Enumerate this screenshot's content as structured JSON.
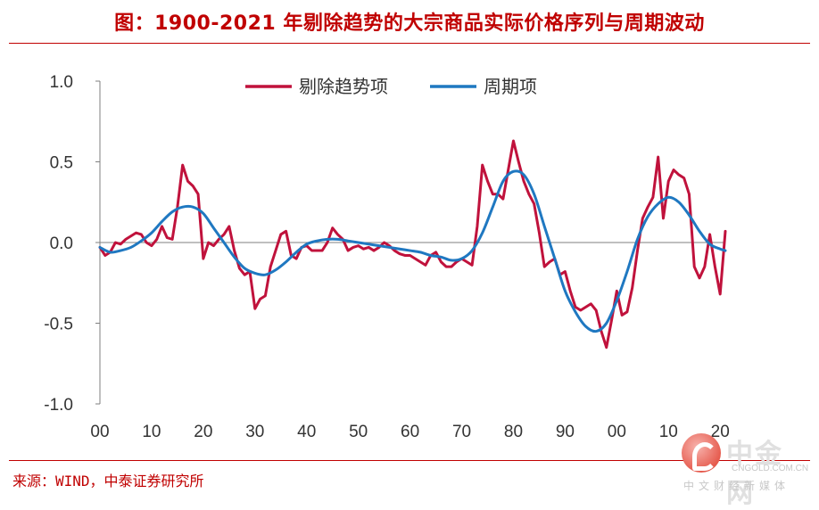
{
  "title": "图：1900-2021 年剔除趋势的大宗商品实际价格序列与周期波动",
  "source": "来源：WIND，中泰证券研究所",
  "watermark": {
    "name": "中金网",
    "url": "CNGOLD.COM.CN",
    "tagline": "中文财经新媒体"
  },
  "colors": {
    "accent": "#c00000",
    "detrended": "#c0123c",
    "cycle": "#1f78c1",
    "axis": "#7f7f7f"
  },
  "chart_data": {
    "type": "line",
    "title": "图：1900-2021 年剔除趋势的大宗商品实际价格序列与周期波动",
    "xlabel": "",
    "ylabel": "",
    "xlim": [
      1900,
      2021
    ],
    "ylim": [
      -1.0,
      1.0
    ],
    "x_ticks": [
      1900,
      1910,
      1920,
      1930,
      1940,
      1950,
      1960,
      1970,
      1980,
      1990,
      2000,
      2010,
      2020
    ],
    "x_tick_labels": [
      "00",
      "10",
      "20",
      "30",
      "40",
      "50",
      "60",
      "70",
      "80",
      "90",
      "00",
      "10",
      "20"
    ],
    "y_ticks": [
      -1.0,
      -0.5,
      0.0,
      0.5,
      1.0
    ],
    "y_tick_labels": [
      "-1.0",
      "-0.5",
      "0.0",
      "0.5",
      "1.0"
    ],
    "grid": false,
    "legend_position": "top-center",
    "series": [
      {
        "name": "剔除趋势项",
        "points": [
          [
            1900,
            -0.03
          ],
          [
            1901,
            -0.08
          ],
          [
            1902,
            -0.06
          ],
          [
            1903,
            0.0
          ],
          [
            1904,
            -0.01
          ],
          [
            1905,
            0.02
          ],
          [
            1906,
            0.04
          ],
          [
            1907,
            0.06
          ],
          [
            1908,
            0.05
          ],
          [
            1909,
            0.0
          ],
          [
            1910,
            -0.02
          ],
          [
            1911,
            0.02
          ],
          [
            1912,
            0.1
          ],
          [
            1913,
            0.03
          ],
          [
            1914,
            0.02
          ],
          [
            1915,
            0.22
          ],
          [
            1916,
            0.48
          ],
          [
            1917,
            0.38
          ],
          [
            1918,
            0.35
          ],
          [
            1919,
            0.3
          ],
          [
            1920,
            -0.1
          ],
          [
            1921,
            0.0
          ],
          [
            1922,
            -0.02
          ],
          [
            1923,
            0.02
          ],
          [
            1924,
            0.05
          ],
          [
            1925,
            0.1
          ],
          [
            1926,
            -0.05
          ],
          [
            1927,
            -0.16
          ],
          [
            1928,
            -0.2
          ],
          [
            1929,
            -0.18
          ],
          [
            1930,
            -0.41
          ],
          [
            1931,
            -0.35
          ],
          [
            1932,
            -0.33
          ],
          [
            1933,
            -0.15
          ],
          [
            1934,
            -0.05
          ],
          [
            1935,
            0.05
          ],
          [
            1936,
            0.07
          ],
          [
            1937,
            -0.08
          ],
          [
            1938,
            -0.1
          ],
          [
            1939,
            -0.03
          ],
          [
            1940,
            -0.02
          ],
          [
            1941,
            -0.05
          ],
          [
            1942,
            -0.05
          ],
          [
            1943,
            -0.05
          ],
          [
            1944,
            0.0
          ],
          [
            1945,
            0.09
          ],
          [
            1946,
            0.05
          ],
          [
            1947,
            0.02
          ],
          [
            1948,
            -0.05
          ],
          [
            1949,
            -0.03
          ],
          [
            1950,
            -0.02
          ],
          [
            1951,
            -0.04
          ],
          [
            1952,
            -0.03
          ],
          [
            1953,
            -0.05
          ],
          [
            1954,
            -0.03
          ],
          [
            1955,
            0.0
          ],
          [
            1956,
            -0.02
          ],
          [
            1957,
            -0.05
          ],
          [
            1958,
            -0.07
          ],
          [
            1959,
            -0.08
          ],
          [
            1960,
            -0.08
          ],
          [
            1961,
            -0.1
          ],
          [
            1962,
            -0.12
          ],
          [
            1963,
            -0.14
          ],
          [
            1964,
            -0.08
          ],
          [
            1965,
            -0.06
          ],
          [
            1966,
            -0.12
          ],
          [
            1967,
            -0.15
          ],
          [
            1968,
            -0.15
          ],
          [
            1969,
            -0.12
          ],
          [
            1970,
            -0.1
          ],
          [
            1971,
            -0.12
          ],
          [
            1972,
            -0.14
          ],
          [
            1973,
            0.1
          ],
          [
            1974,
            0.48
          ],
          [
            1975,
            0.38
          ],
          [
            1976,
            0.3
          ],
          [
            1977,
            0.3
          ],
          [
            1978,
            0.27
          ],
          [
            1979,
            0.45
          ],
          [
            1980,
            0.63
          ],
          [
            1981,
            0.5
          ],
          [
            1982,
            0.38
          ],
          [
            1983,
            0.3
          ],
          [
            1984,
            0.24
          ],
          [
            1985,
            0.06
          ],
          [
            1986,
            -0.15
          ],
          [
            1987,
            -0.12
          ],
          [
            1988,
            -0.1
          ],
          [
            1989,
            -0.2
          ],
          [
            1990,
            -0.18
          ],
          [
            1991,
            -0.3
          ],
          [
            1992,
            -0.4
          ],
          [
            1993,
            -0.42
          ],
          [
            1994,
            -0.4
          ],
          [
            1995,
            -0.38
          ],
          [
            1996,
            -0.42
          ],
          [
            1997,
            -0.55
          ],
          [
            1998,
            -0.65
          ],
          [
            1999,
            -0.48
          ],
          [
            2000,
            -0.3
          ],
          [
            2001,
            -0.45
          ],
          [
            2002,
            -0.43
          ],
          [
            2003,
            -0.28
          ],
          [
            2004,
            -0.05
          ],
          [
            2005,
            0.15
          ],
          [
            2006,
            0.22
          ],
          [
            2007,
            0.28
          ],
          [
            2008,
            0.53
          ],
          [
            2009,
            0.15
          ],
          [
            2010,
            0.38
          ],
          [
            2011,
            0.45
          ],
          [
            2012,
            0.42
          ],
          [
            2013,
            0.4
          ],
          [
            2014,
            0.3
          ],
          [
            2015,
            -0.15
          ],
          [
            2016,
            -0.22
          ],
          [
            2017,
            -0.15
          ],
          [
            2018,
            0.05
          ],
          [
            2019,
            -0.15
          ],
          [
            2020,
            -0.32
          ],
          [
            2021,
            0.07
          ]
        ]
      },
      {
        "name": "周期项",
        "points": [
          [
            1900,
            -0.03
          ],
          [
            1902,
            -0.06
          ],
          [
            1904,
            -0.05
          ],
          [
            1906,
            -0.03
          ],
          [
            1908,
            0.01
          ],
          [
            1910,
            0.06
          ],
          [
            1912,
            0.13
          ],
          [
            1914,
            0.19
          ],
          [
            1916,
            0.22
          ],
          [
            1918,
            0.22
          ],
          [
            1920,
            0.18
          ],
          [
            1922,
            0.09
          ],
          [
            1924,
            0.0
          ],
          [
            1926,
            -0.09
          ],
          [
            1928,
            -0.16
          ],
          [
            1930,
            -0.19
          ],
          [
            1932,
            -0.2
          ],
          [
            1934,
            -0.17
          ],
          [
            1936,
            -0.12
          ],
          [
            1938,
            -0.06
          ],
          [
            1940,
            -0.01
          ],
          [
            1942,
            0.01
          ],
          [
            1944,
            0.02
          ],
          [
            1946,
            0.02
          ],
          [
            1948,
            0.01
          ],
          [
            1950,
            0.0
          ],
          [
            1952,
            -0.01
          ],
          [
            1954,
            -0.02
          ],
          [
            1956,
            -0.03
          ],
          [
            1958,
            -0.04
          ],
          [
            1960,
            -0.05
          ],
          [
            1962,
            -0.06
          ],
          [
            1964,
            -0.08
          ],
          [
            1966,
            -0.09
          ],
          [
            1968,
            -0.11
          ],
          [
            1970,
            -0.1
          ],
          [
            1972,
            -0.05
          ],
          [
            1974,
            0.06
          ],
          [
            1976,
            0.22
          ],
          [
            1978,
            0.38
          ],
          [
            1980,
            0.44
          ],
          [
            1982,
            0.42
          ],
          [
            1984,
            0.3
          ],
          [
            1986,
            0.1
          ],
          [
            1988,
            -0.1
          ],
          [
            1990,
            -0.3
          ],
          [
            1992,
            -0.43
          ],
          [
            1994,
            -0.52
          ],
          [
            1996,
            -0.55
          ],
          [
            1998,
            -0.5
          ],
          [
            2000,
            -0.36
          ],
          [
            2002,
            -0.18
          ],
          [
            2004,
            0.02
          ],
          [
            2006,
            0.16
          ],
          [
            2008,
            0.24
          ],
          [
            2010,
            0.28
          ],
          [
            2012,
            0.25
          ],
          [
            2014,
            0.17
          ],
          [
            2016,
            0.07
          ],
          [
            2018,
            -0.01
          ],
          [
            2020,
            -0.04
          ],
          [
            2021,
            -0.05
          ]
        ]
      }
    ]
  }
}
